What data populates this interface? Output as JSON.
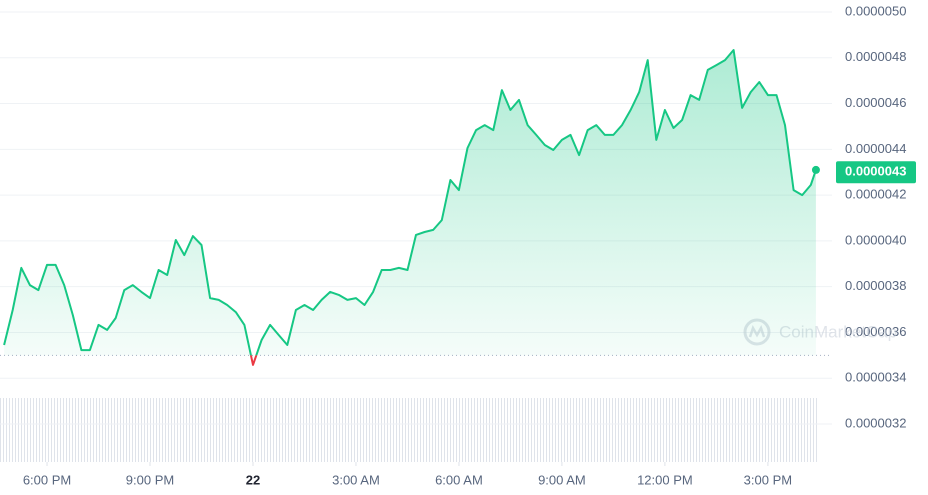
{
  "chart_data": {
    "type": "area",
    "color": "#16c784",
    "down_color": "#ea3943",
    "watermark": "CoinMarketCap",
    "baseline": 3.5e-06,
    "last_price": {
      "value": 4.3e-06,
      "label": "0.0000043"
    },
    "xlim": [
      16.63,
      40.46
    ],
    "xticks": [
      {
        "value": 18,
        "label": "6:00 PM"
      },
      {
        "value": 21,
        "label": "9:00 PM"
      },
      {
        "value": 24,
        "label": "22"
      },
      {
        "value": 27,
        "label": "3:00 AM"
      },
      {
        "value": 30,
        "label": "6:00 AM"
      },
      {
        "value": 33,
        "label": "9:00 AM"
      },
      {
        "value": 36,
        "label": "12:00 PM"
      },
      {
        "value": 39,
        "label": "3:00 PM"
      }
    ],
    "ylim": [
      3.2e-06,
      5e-06
    ],
    "yticks": [
      {
        "value": 5e-06,
        "label": "0.0000050"
      },
      {
        "value": 4.8e-06,
        "label": "0.0000048"
      },
      {
        "value": 4.6e-06,
        "label": "0.0000046"
      },
      {
        "value": 4.4e-06,
        "label": "0.0000044"
      },
      {
        "value": 4.2e-06,
        "label": "0.0000042"
      },
      {
        "value": 4e-06,
        "label": "0.0000040"
      },
      {
        "value": 3.8e-06,
        "label": "0.0000038"
      },
      {
        "value": 3.6e-06,
        "label": "0.0000036"
      },
      {
        "value": 3.4e-06,
        "label": "0.0000034"
      },
      {
        "value": 3.2e-06,
        "label": "0.0000032"
      }
    ],
    "grid": true,
    "x": [
      16.75,
      17,
      17.25,
      17.5,
      17.75,
      18,
      18.25,
      18.5,
      18.75,
      19,
      19.25,
      19.5,
      19.75,
      20,
      20.25,
      20.5,
      20.75,
      21,
      21.25,
      21.5,
      21.75,
      22,
      22.25,
      22.5,
      22.75,
      23,
      23.25,
      23.5,
      23.75,
      24,
      24.25,
      24.5,
      24.75,
      25,
      25.25,
      25.5,
      25.75,
      26,
      26.25,
      26.5,
      26.75,
      27,
      27.25,
      27.5,
      27.75,
      28,
      28.25,
      28.5,
      28.75,
      29,
      29.25,
      29.5,
      29.75,
      30,
      30.25,
      30.5,
      30.75,
      31,
      31.25,
      31.5,
      31.75,
      32,
      32.25,
      32.5,
      32.75,
      33,
      33.25,
      33.5,
      33.75,
      34,
      34.25,
      34.5,
      34.75,
      35,
      35.25,
      35.5,
      35.75,
      36,
      36.25,
      36.5,
      36.75,
      37,
      37.25,
      37.5,
      37.75,
      38,
      38.25,
      38.5,
      38.75,
      39,
      39.25,
      39.5,
      39.75,
      40,
      40.25,
      40.4
    ],
    "values": [
      3.545e-06,
      3.698e-06,
      3.882e-06,
      3.807e-06,
      3.785e-06,
      3.895e-06,
      3.895e-06,
      3.807e-06,
      3.676e-06,
      3.523e-06,
      3.523e-06,
      3.633e-06,
      3.611e-06,
      3.663e-06,
      3.785e-06,
      3.807e-06,
      3.777e-06,
      3.75e-06,
      3.873e-06,
      3.851e-06,
      4.004e-06,
      3.938e-06,
      4.021e-06,
      3.982e-06,
      3.75e-06,
      3.742e-06,
      3.72e-06,
      3.689e-06,
      3.633e-06,
      3.458e-06,
      3.567e-06,
      3.633e-06,
      3.589e-06,
      3.545e-06,
      3.698e-06,
      3.72e-06,
      3.698e-06,
      3.742e-06,
      3.777e-06,
      3.764e-06,
      3.742e-06,
      3.75e-06,
      3.72e-06,
      3.777e-06,
      3.873e-06,
      3.873e-06,
      3.882e-06,
      3.873e-06,
      4.026e-06,
      4.039e-06,
      4.048e-06,
      4.091e-06,
      4.266e-06,
      4.222e-06,
      4.406e-06,
      4.484e-06,
      4.506e-06,
      4.484e-06,
      4.659e-06,
      4.572e-06,
      4.616e-06,
      4.506e-06,
      4.463e-06,
      4.419e-06,
      4.397e-06,
      4.441e-06,
      4.463e-06,
      4.375e-06,
      4.484e-06,
      4.506e-06,
      4.463e-06,
      4.463e-06,
      4.506e-06,
      4.572e-06,
      4.65e-06,
      4.79e-06,
      4.441e-06,
      4.572e-06,
      4.493e-06,
      4.528e-06,
      4.637e-06,
      4.616e-06,
      4.747e-06,
      4.768e-06,
      4.79e-06,
      4.834e-06,
      4.581e-06,
      4.65e-06,
      4.694e-06,
      4.637e-06,
      4.637e-06,
      4.506e-06,
      4.222e-06,
      4.2e-06,
      4.244e-06,
      4.31e-06
    ]
  }
}
